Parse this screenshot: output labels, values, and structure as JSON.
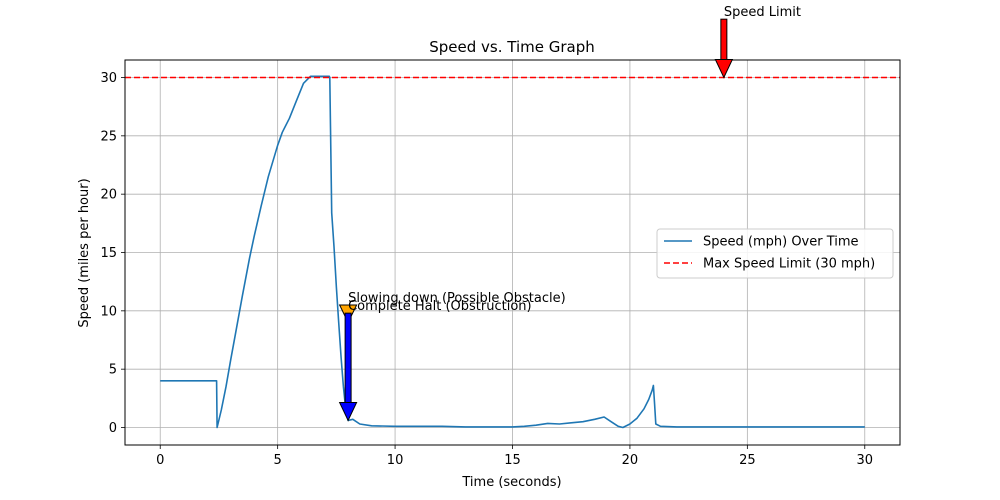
{
  "chart_data": {
    "type": "line",
    "title": "Speed vs. Time Graph",
    "xlabel": "Time (seconds)",
    "ylabel": "Speed (miles per hour)",
    "xlim": [
      -1.5,
      31.5
    ],
    "ylim": [
      -1.5,
      31.5
    ],
    "xticks": [
      0,
      5,
      10,
      15,
      20,
      25,
      30
    ],
    "yticks": [
      0,
      5,
      10,
      15,
      20,
      25,
      30
    ],
    "grid": true,
    "legend_position": "center-right",
    "series": [
      {
        "name": "Speed (mph) Over Time",
        "color": "#1f77b4",
        "style": "solid",
        "x": [
          0,
          1,
          2,
          2.4,
          2.42,
          2.6,
          2.8,
          3.0,
          3.2,
          3.5,
          3.8,
          4.0,
          4.3,
          4.6,
          5.0,
          5.2,
          5.5,
          5.8,
          6.1,
          6.4,
          6.6,
          6.8,
          7.0,
          7.2,
          7.22,
          7.3,
          7.4,
          7.5,
          7.6,
          7.7,
          7.8,
          7.9,
          8.0,
          8.2,
          8.5,
          9.0,
          10,
          11,
          12,
          13,
          14,
          15,
          15.5,
          16,
          16.5,
          17,
          17.5,
          18,
          18.5,
          18.9,
          19.2,
          19.5,
          19.7,
          20.0,
          20.3,
          20.6,
          20.8,
          20.95,
          21.0,
          21.05,
          21.1,
          21.3,
          22,
          24,
          26,
          28,
          30
        ],
        "y": [
          4.0,
          4.0,
          4.0,
          4.0,
          0.0,
          1.5,
          3.5,
          5.8,
          8.0,
          11.3,
          14.5,
          16.4,
          19.0,
          21.5,
          24.2,
          25.3,
          26.5,
          28.0,
          29.5,
          30.1,
          30.1,
          30.1,
          30.1,
          30.1,
          30.0,
          18.4,
          15.5,
          12.0,
          9.0,
          6.0,
          3.5,
          1.5,
          0.6,
          0.7,
          0.3,
          0.15,
          0.1,
          0.1,
          0.1,
          0.05,
          0.05,
          0.05,
          0.1,
          0.2,
          0.35,
          0.3,
          0.4,
          0.5,
          0.7,
          0.9,
          0.5,
          0.1,
          0.0,
          0.3,
          0.8,
          1.6,
          2.4,
          3.2,
          3.6,
          2.0,
          0.3,
          0.1,
          0.05,
          0.05,
          0.05,
          0.05,
          0.05
        ]
      },
      {
        "name": "Max Speed Limit (30 mph)",
        "color": "#ff0000",
        "style": "dashed",
        "y_constant": 30
      }
    ],
    "annotations": [
      {
        "text": "Speed Limit",
        "arrow_tip": [
          24,
          30
        ],
        "text_pos": [
          24,
          35
        ],
        "arrow_color": "#ff0000"
      },
      {
        "text": "Slowing down (Possible Obstacle)",
        "arrow_tip": [
          8,
          9
        ],
        "text_pos": [
          8,
          10.5
        ],
        "arrow_color": "#ffa500"
      },
      {
        "text": "Complete Halt (Obstruction)",
        "arrow_tip": [
          8,
          0.6
        ],
        "text_pos": [
          8,
          9.8
        ],
        "arrow_color": "#0000ff"
      }
    ]
  }
}
